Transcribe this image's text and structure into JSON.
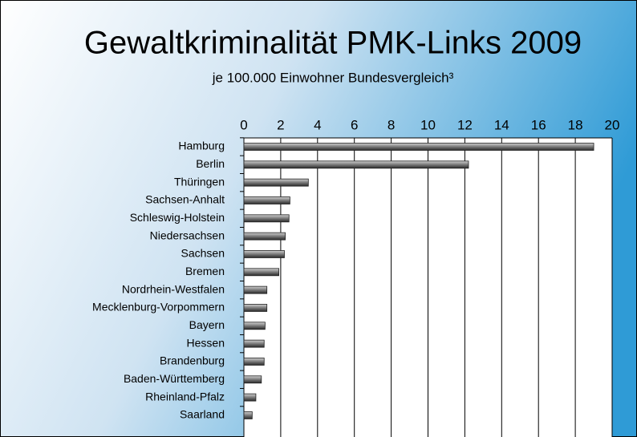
{
  "chart_data": {
    "type": "hbar",
    "title": "Gewaltkriminalität PMK-Links 2009",
    "subtitle": "je 100.000 Einwohner Bundesvergleich³",
    "categories": [
      "Hamburg",
      "Berlin",
      "Thüringen",
      "Sachsen-Anhalt",
      "Schleswig-Holstein",
      "Niedersachsen",
      "Sachsen",
      "Bremen",
      "Nordrhein-Westfalen",
      "Mecklenburg-Vorpommern",
      "Bayern",
      "Hessen",
      "Brandenburg",
      "Baden-Württemberg",
      "Rheinland-Pfalz",
      "Saarland"
    ],
    "values": [
      19.0,
      12.2,
      3.5,
      2.5,
      2.45,
      2.25,
      2.2,
      1.9,
      1.25,
      1.25,
      1.15,
      1.1,
      1.1,
      0.95,
      0.65,
      0.45
    ],
    "color": "#6e6e6e",
    "xlim": [
      0,
      20
    ],
    "xticks": [
      0,
      2,
      4,
      6,
      8,
      10,
      12,
      14,
      16,
      18,
      20
    ],
    "grid": true
  }
}
